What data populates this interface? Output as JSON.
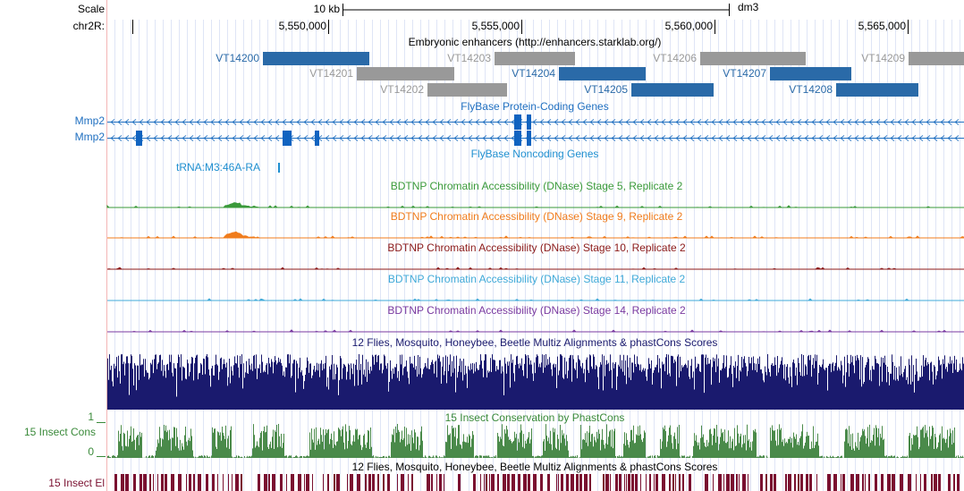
{
  "ruler": {
    "scale_label": "Scale",
    "chrom_label": "chr2R:",
    "scale_bar_label": "10 kb",
    "assembly": "dm3",
    "ticks": [
      "5,550,000",
      "5,555,000",
      "5,560,000",
      "5,565,000"
    ]
  },
  "enhancers": {
    "title": "Embryonic enhancers (http://enhancers.starklab.org/)",
    "items": [
      "VT14200",
      "VT14201",
      "VT14202",
      "VT14203",
      "VT14204",
      "VT14205",
      "VT14206",
      "VT14207",
      "VT14208",
      "VT14209"
    ]
  },
  "coding_genes": {
    "title": "FlyBase Protein-Coding Genes",
    "items": [
      "Mmp2",
      "Mmp2"
    ]
  },
  "noncoding_genes": {
    "title": "FlyBase Noncoding Genes",
    "items": [
      "tRNA:M3:46A-RA"
    ]
  },
  "dnase_tracks": [
    {
      "title": "BDTNP Chromatin Accessibility (DNase) Stage 5, Replicate 2"
    },
    {
      "title": "BDTNP Chromatin Accessibility (DNase) Stage 9, Replicate 2"
    },
    {
      "title": "BDTNP Chromatin Accessibility (DNase) Stage 10, Replicate 2"
    },
    {
      "title": "BDTNP Chromatin Accessibility (DNase) Stage 11, Replicate 2"
    },
    {
      "title": "BDTNP Chromatin Accessibility (DNase) Stage 14, Replicate 2"
    }
  ],
  "multiz": {
    "title": "12 Flies, Mosquito, Honeybee, Beetle Multiz Alignments & phastCons Scores"
  },
  "phastcons": {
    "title": "15 Insect Conservation by PhastCons",
    "side_label": "15 Insect Cons",
    "max_label": "1",
    "min_label": "0"
  },
  "elements": {
    "title": "12 Flies, Mosquito, Honeybee, Beetle Multiz Alignments & phastCons Scores",
    "side_label": "15 Insect El"
  }
}
